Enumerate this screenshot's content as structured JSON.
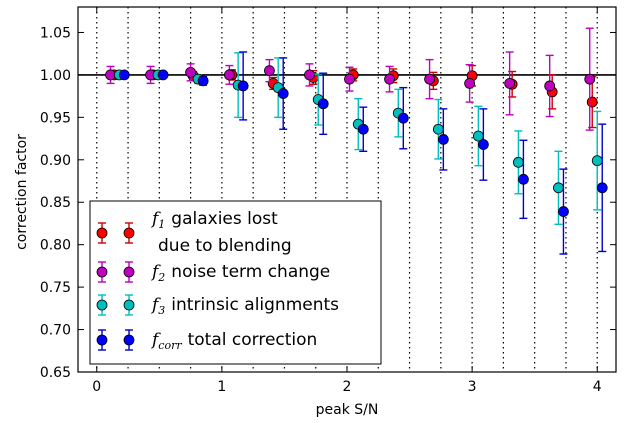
{
  "chart_data": {
    "type": "scatter",
    "xlabel": "peak S/N",
    "ylabel": "correction factor",
    "xlim": [
      -0.15,
      4.15
    ],
    "ylim": [
      0.65,
      1.08
    ],
    "xticks": [
      0,
      1,
      2,
      3,
      4
    ],
    "yticks": [
      0.65,
      0.7,
      0.75,
      0.8,
      0.85,
      0.9,
      0.95,
      1.0,
      1.05
    ],
    "xtick_labels": [
      "0",
      "1",
      "2",
      "3",
      "4"
    ],
    "ytick_labels": [
      "0.65",
      "0.70",
      "0.75",
      "0.80",
      "0.85",
      "0.90",
      "0.95",
      "1.00",
      "1.05"
    ],
    "reference_line_y": 1.0,
    "bin_edges": [
      0,
      0.25,
      0.5,
      0.75,
      1.0,
      1.25,
      1.5,
      1.75,
      2.0,
      2.25,
      2.5,
      2.75,
      3.0,
      3.25,
      3.5,
      3.75,
      4.0
    ],
    "legend_position": "lower-left",
    "series": [
      {
        "name": "galaxies lost",
        "name_line2": "due to blending",
        "symbol": "f",
        "subscript": "1",
        "color": "#ff0000",
        "errcolor": "#cc0000",
        "x": [
          0.14,
          0.45,
          0.77,
          1.08,
          1.41,
          1.73,
          2.05,
          2.37,
          2.69,
          3.0,
          3.32,
          3.64,
          3.96
        ],
        "y": [
          1.0,
          1.0,
          0.999,
          1.0,
          0.99,
          0.997,
          1.0,
          0.999,
          0.993,
          0.999,
          0.989,
          0.98,
          0.968
        ],
        "err": [
          0.004,
          0.004,
          0.005,
          0.006,
          0.007,
          0.008,
          0.007,
          0.008,
          0.01,
          0.012,
          0.015,
          0.02,
          0.03
        ]
      },
      {
        "name": "noise term change",
        "symbol": "f",
        "subscript": "2",
        "color": "#bf00bf",
        "errcolor": "#bf00bf",
        "x": [
          0.11,
          0.43,
          0.75,
          1.06,
          1.38,
          1.7,
          2.02,
          2.34,
          2.66,
          2.98,
          3.3,
          3.62,
          3.94
        ],
        "y": [
          1.0,
          1.0,
          1.003,
          1.0,
          1.005,
          1.0,
          0.995,
          0.995,
          0.995,
          0.99,
          0.99,
          0.987,
          0.995
        ],
        "err": [
          0.01,
          0.01,
          0.01,
          0.011,
          0.013,
          0.013,
          0.014,
          0.015,
          0.023,
          0.022,
          0.037,
          0.036,
          0.06
        ]
      },
      {
        "name": "intrinsic alignments",
        "symbol": "f",
        "subscript": "3",
        "color": "#00bfbf",
        "errcolor": "#00bfbf",
        "x": [
          0.18,
          0.49,
          0.81,
          1.13,
          1.45,
          1.77,
          2.09,
          2.41,
          2.73,
          3.05,
          3.37,
          3.69,
          4.0
        ],
        "y": [
          1.0,
          1.0,
          0.995,
          0.988,
          0.985,
          0.971,
          0.942,
          0.955,
          0.936,
          0.928,
          0.897,
          0.867,
          0.899
        ],
        "err": [
          0.003,
          0.003,
          0.005,
          0.038,
          0.035,
          0.03,
          0.03,
          0.028,
          0.035,
          0.035,
          0.037,
          0.043,
          0.058
        ]
      },
      {
        "name": "total correction",
        "symbol": "f",
        "subscript": "corr",
        "color": "#0000ff",
        "errcolor": "#0000cc",
        "x": [
          0.22,
          0.53,
          0.85,
          1.17,
          1.49,
          1.81,
          2.13,
          2.45,
          2.77,
          3.09,
          3.41,
          3.73,
          4.04
        ],
        "y": [
          1.0,
          1.0,
          0.993,
          0.987,
          0.978,
          0.966,
          0.936,
          0.949,
          0.924,
          0.918,
          0.877,
          0.839,
          0.867
        ],
        "err": [
          0.003,
          0.003,
          0.005,
          0.04,
          0.042,
          0.036,
          0.026,
          0.036,
          0.036,
          0.042,
          0.046,
          0.05,
          0.075
        ]
      }
    ]
  }
}
